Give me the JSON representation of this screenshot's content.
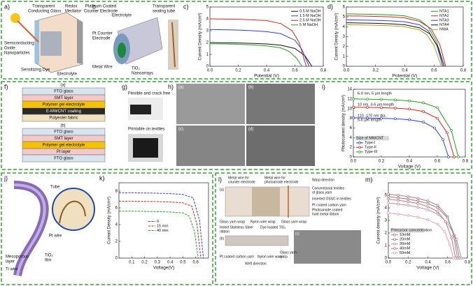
{
  "chart_data": [
    {
      "type": "line",
      "label": "c)",
      "xlabel": "Potential (V)",
      "ylabel": "Current Density (mA/cm²)",
      "xlim": [
        0,
        0.8
      ],
      "ylim": [
        0,
        5
      ],
      "xticks": [
        {
          "value": 0,
          "label": "0.0"
        },
        0.2,
        0.4,
        0.6,
        0.8
      ],
      "yticks": [
        0,
        1,
        2,
        3,
        4,
        5
      ],
      "legend": "upper right",
      "markers": false,
      "series": [
        {
          "name": "0.5 M NaOH",
          "color": "#111111",
          "x": [
            0,
            0.1,
            0.2,
            0.3,
            0.4,
            0.5,
            0.6,
            0.67,
            0.72
          ],
          "values": [
            2.0,
            1.98,
            1.96,
            1.93,
            1.88,
            1.78,
            1.5,
            0.9,
            0
          ]
        },
        {
          "name": "1.5 M NaOH",
          "color": "#2b3fd6",
          "x": [
            0,
            0.1,
            0.2,
            0.3,
            0.4,
            0.5,
            0.6,
            0.65,
            0.7
          ],
          "values": [
            3.1,
            3.08,
            3.05,
            3.0,
            2.92,
            2.75,
            2.2,
            1.4,
            0
          ]
        },
        {
          "name": "2.5 M NaOH",
          "color": "#e02020",
          "x": [
            0,
            0.1,
            0.2,
            0.3,
            0.4,
            0.5,
            0.58,
            0.63,
            0.68
          ],
          "values": [
            4.0,
            3.98,
            3.96,
            3.92,
            3.85,
            3.6,
            3.0,
            2.0,
            0
          ]
        },
        {
          "name": "5 M NaOH",
          "color": "#1fa01f",
          "x": [
            0,
            0.1,
            0.2,
            0.3,
            0.4,
            0.5,
            0.56,
            0.61,
            0.65
          ],
          "values": [
            1.9,
            1.88,
            1.85,
            1.8,
            1.72,
            1.55,
            1.25,
            0.7,
            0
          ]
        }
      ]
    },
    {
      "type": "line",
      "label": "d)",
      "xlabel": "Potential (V)",
      "ylabel": "Current Density (mA/cm²)",
      "xlim": [
        0,
        0.8
      ],
      "ylim": [
        0,
        6
      ],
      "xticks": [
        {
          "value": 0,
          "label": "0.0"
        },
        0.2,
        0.4,
        0.6,
        0.8
      ],
      "yticks": [
        0,
        1,
        2,
        3,
        4,
        5,
        6
      ],
      "legend": "upper right",
      "markers": false,
      "series": [
        {
          "name": "NTA1",
          "color": "#1fa01f",
          "x": [
            0,
            0.1,
            0.2,
            0.3,
            0.4,
            0.5,
            0.56,
            0.62,
            0.66
          ],
          "values": [
            5.3,
            5.28,
            5.25,
            5.2,
            5.1,
            4.7,
            4.0,
            2.4,
            0
          ]
        },
        {
          "name": "NTA2",
          "color": "#e02020",
          "x": [
            0,
            0.1,
            0.2,
            0.3,
            0.4,
            0.5,
            0.58,
            0.64,
            0.68
          ],
          "values": [
            5.1,
            5.08,
            5.05,
            5.0,
            4.9,
            4.55,
            3.8,
            2.2,
            0
          ]
        },
        {
          "name": "NTA3",
          "color": "#2b3fd6",
          "x": [
            0,
            0.1,
            0.2,
            0.3,
            0.4,
            0.5,
            0.56,
            0.62,
            0.66
          ],
          "values": [
            4.7,
            4.68,
            4.65,
            4.6,
            4.5,
            4.2,
            3.6,
            2.1,
            0
          ]
        },
        {
          "name": "NTA4",
          "color": "#111111",
          "x": [
            0,
            0.1,
            0.2,
            0.3,
            0.4,
            0.5,
            0.57,
            0.63,
            0.67
          ],
          "values": [
            4.4,
            4.38,
            4.35,
            4.3,
            4.2,
            3.9,
            3.3,
            1.9,
            0
          ]
        },
        {
          "name": "NWA",
          "color": "#a8a020",
          "x": [
            0,
            0.1,
            0.2,
            0.3,
            0.4,
            0.5,
            0.55,
            0.6,
            0.65
          ],
          "values": [
            4.2,
            4.18,
            4.15,
            4.1,
            4.0,
            3.7,
            3.2,
            2.1,
            0
          ]
        }
      ]
    },
    {
      "type": "line",
      "label": "i)",
      "xlabel": "Voltage (V)",
      "ylabel": "Photocurrent density (mA/cm²)",
      "xlim": [
        0,
        0.8
      ],
      "ylim": [
        0,
        14
      ],
      "xticks": [
        {
          "value": 0,
          "label": "0.0"
        },
        0.2,
        0.4,
        0.6,
        0.8
      ],
      "yticks": [
        0,
        2,
        4,
        6,
        8,
        10,
        12,
        14
      ],
      "legend": "lower left",
      "legend_title": "Size of MWCNT",
      "markers": true,
      "annotations": [
        "6-9 nm, 5 µm length",
        "10 nm, 3-6 µm length",
        "110 -170 nm dia,",
        "5-6 µm length"
      ],
      "series": [
        {
          "name": "Type-I",
          "color": "#2b3fd6",
          "x": [
            0,
            0.1,
            0.2,
            0.3,
            0.4,
            0.5,
            0.58,
            0.64,
            0.68
          ],
          "values": [
            8.1,
            8.05,
            8.0,
            7.9,
            7.7,
            7.2,
            6.0,
            3.6,
            0
          ]
        },
        {
          "name": "Type-II",
          "color": "#e02020",
          "x": [
            0,
            0.1,
            0.2,
            0.3,
            0.4,
            0.5,
            0.6,
            0.67,
            0.72
          ],
          "values": [
            10.3,
            10.25,
            10.2,
            10.1,
            9.9,
            9.4,
            8.0,
            5.0,
            0
          ]
        },
        {
          "name": "Type-III",
          "color": "#1fa01f",
          "x": [
            0,
            0.1,
            0.2,
            0.3,
            0.4,
            0.5,
            0.6,
            0.7,
            0.75
          ],
          "values": [
            12.0,
            11.95,
            11.9,
            11.8,
            11.6,
            11.2,
            10.2,
            5.5,
            0
          ]
        }
      ]
    },
    {
      "type": "line",
      "label": "k)",
      "xlabel": "Voltage(V)",
      "ylabel": "Current Density (mA/cm²)",
      "xlim": [
        0,
        0.7
      ],
      "ylim": [
        0,
        9
      ],
      "xticks": [
        0.1,
        0.2,
        0.3,
        0.4,
        0.5,
        0.6
      ],
      "yticks": [
        0,
        2,
        4,
        6,
        8
      ],
      "legend": "center",
      "markers": false,
      "series": [
        {
          "name": "0",
          "color": "#2b3fd6",
          "dash": true,
          "x": [
            0,
            0.1,
            0.2,
            0.3,
            0.4,
            0.5,
            0.58,
            0.63,
            0.66
          ],
          "values": [
            7.8,
            7.8,
            7.78,
            7.75,
            7.7,
            7.6,
            7.2,
            4.5,
            0
          ]
        },
        {
          "name": "15 min",
          "color": "#e02020",
          "dash": true,
          "x": [
            0,
            0.1,
            0.2,
            0.3,
            0.4,
            0.5,
            0.57,
            0.61,
            0.64
          ],
          "values": [
            6.8,
            6.8,
            6.78,
            6.75,
            6.7,
            6.6,
            6.2,
            4.0,
            0
          ]
        },
        {
          "name": "40 min",
          "color": "#1fa01f",
          "dash": true,
          "x": [
            0,
            0.1,
            0.2,
            0.3,
            0.4,
            0.5,
            0.55,
            0.59,
            0.62
          ],
          "values": [
            5.6,
            5.6,
            5.58,
            5.55,
            5.5,
            5.4,
            5.0,
            3.2,
            0
          ]
        }
      ]
    },
    {
      "type": "line",
      "label": "m)",
      "xlabel": "Voltage (V)",
      "ylabel": "Current density (mA/cm²)",
      "xlim": [
        0,
        0.8
      ],
      "ylim": [
        0,
        6
      ],
      "xticks": [
        {
          "value": 0,
          "label": "0.0"
        },
        0.2,
        0.4,
        0.6,
        0.8
      ],
      "yticks": [
        0,
        1,
        2,
        3,
        4,
        5
      ],
      "legend": "lower left",
      "legend_title": "Precursor concentration",
      "markers": true,
      "series": [
        {
          "name": "10mM",
          "color": "#c07080",
          "x": [
            0,
            0.1,
            0.2,
            0.3,
            0.4,
            0.5,
            0.6,
            0.66,
            0.7
          ],
          "values": [
            5.1,
            5.0,
            4.9,
            4.75,
            4.55,
            4.2,
            3.3,
            1.8,
            0
          ]
        },
        {
          "name": "20mM",
          "color": "#808080",
          "x": [
            0,
            0.1,
            0.2,
            0.3,
            0.4,
            0.5,
            0.6,
            0.67,
            0.72
          ],
          "values": [
            4.9,
            4.8,
            4.7,
            4.55,
            4.35,
            4.0,
            3.2,
            1.8,
            0
          ]
        },
        {
          "name": "30mM",
          "color": "#b090b0",
          "x": [
            0,
            0.1,
            0.2,
            0.3,
            0.4,
            0.5,
            0.6,
            0.69,
            0.74
          ],
          "values": [
            4.4,
            4.3,
            4.2,
            4.05,
            3.85,
            3.5,
            2.8,
            1.5,
            0
          ]
        },
        {
          "name": "40mM",
          "color": "#d07070",
          "x": [
            0,
            0.1,
            0.2,
            0.3,
            0.4,
            0.5,
            0.58,
            0.64,
            0.68
          ],
          "values": [
            4.7,
            4.6,
            4.5,
            4.35,
            4.1,
            3.7,
            2.9,
            1.6,
            0
          ]
        },
        {
          "name": "50mM",
          "color": "#e0a0c0",
          "x": [
            0,
            0.1,
            0.2,
            0.3,
            0.4,
            0.5,
            0.57,
            0.62,
            0.66
          ],
          "values": [
            3.6,
            3.5,
            3.4,
            3.25,
            3.05,
            2.7,
            2.1,
            1.1,
            0
          ]
        }
      ]
    }
  ],
  "diagrams": {
    "a": {
      "label": "a)",
      "texts": [
        "Transparent",
        "Conducting Glass",
        "Redox",
        "Mediator",
        "Platinum Coated",
        "Counter Electrode",
        "Semiconducting",
        "Oxide",
        "Nanoparticles",
        "Sensitizing Dye",
        "Electrolyte"
      ]
    },
    "b": {
      "label": "b",
      "texts": [
        "Electrolyte",
        "Transparent",
        "sealing tube",
        "Pt Counter",
        "Electrode",
        "Metal Wire",
        "TiO₂",
        "Nanoarrays"
      ]
    },
    "f": {
      "label": "f)",
      "top": [
        "(a)",
        "FTO glass",
        "SMT layer",
        "Polymer gel electrolyte",
        "E-MWCNT coating",
        "Polyester fabric"
      ],
      "bottom": [
        "(b)",
        "FTO glass",
        "SMT layer",
        "Polymer gel electrolyte",
        "Pt layer",
        "FTO glass"
      ]
    },
    "g": {
      "label": "g)",
      "texts": [
        "Flexible and crack free",
        "Printable on textiles"
      ]
    },
    "h": {
      "label": "h)",
      "sublabels": [
        "(a)",
        "(b)",
        "(c)",
        "(d)"
      ]
    },
    "j": {
      "label": "j)",
      "texts": [
        "Tube",
        "Pt wire",
        "Mesoporous",
        "layer",
        "TiO₂",
        "film",
        "Ti wire"
      ]
    },
    "l": {
      "label": "l)",
      "texts": [
        "Metal wire for",
        "counter electrode",
        "Metal wire for",
        "photoanode electrode",
        "Warp direction",
        "(a)",
        "Conventional textiles",
        "of glass yarn",
        "Inserted OSSC in textiles",
        "Pt coated carbon yarn",
        "Photoanode coated",
        "hold metal ribbon",
        "Glass yarn wrap",
        "Nylon wire wrap",
        "Glass yarn wrap",
        "Holed Stainless Steel",
        "ribbon",
        "Dye loaded TiO₂",
        "(b)",
        "(c)",
        "Pt coated carbon yarn",
        "Nylon wire warp",
        "Glass yarn",
        "warp",
        "Weft direction"
      ]
    }
  }
}
